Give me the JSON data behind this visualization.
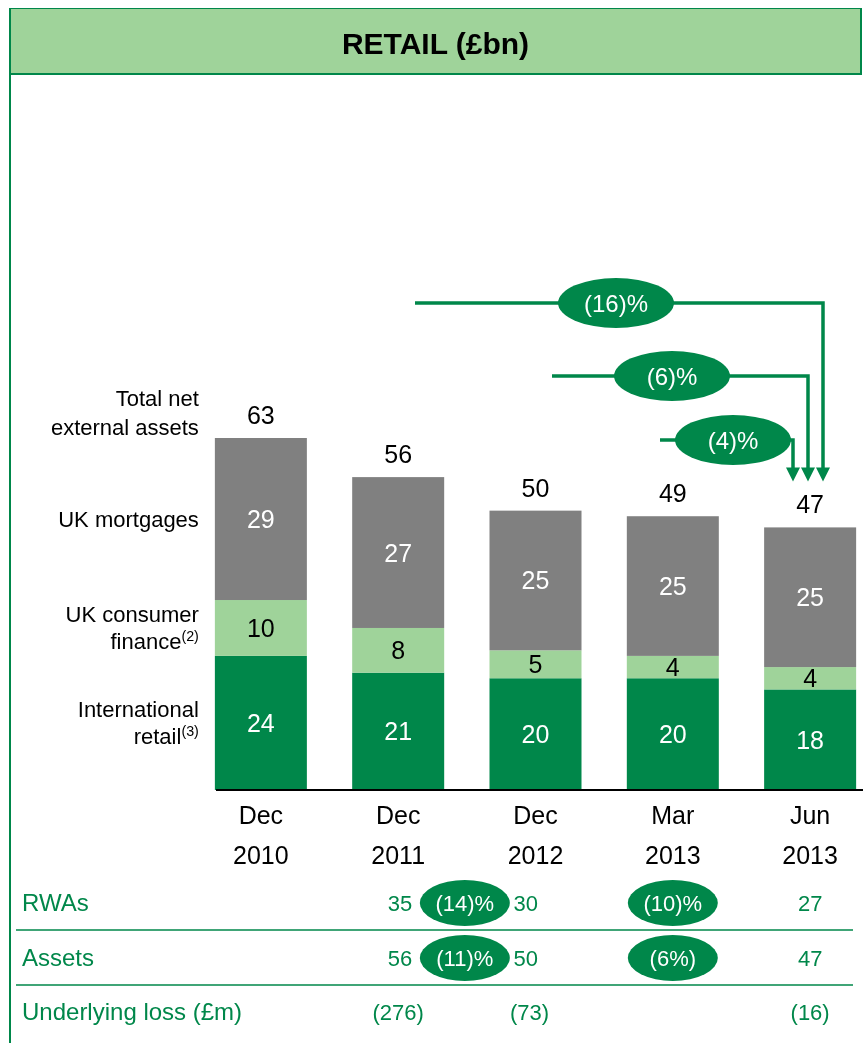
{
  "chart_data": {
    "type": "bar",
    "title": "RETAIL (£bn)",
    "stacked": true,
    "data_labels": true,
    "legend": "left",
    "categories": [
      "Dec 2010",
      "Dec 2011",
      "Dec 2012",
      "Mar 2013",
      "Jun 2013"
    ],
    "series": [
      {
        "name": "International retail$^{(3)}$",
        "color": "#00874a",
        "values": [
          24,
          21,
          20,
          20,
          18
        ]
      },
      {
        "name": "UK consumer finance$^{(2)}$",
        "color": "#9fd39a",
        "values": [
          10,
          8,
          5,
          4,
          4
        ]
      },
      {
        "name": "UK mortgages",
        "color": "#808080",
        "values": [
          29,
          27,
          25,
          25,
          25
        ]
      }
    ],
    "totals": [
      "63",
      "56",
      "50",
      "49",
      "47"
    ],
    "annotations": [
      "Total net external assets",
      "(16)%",
      "(6)%",
      "(4)%",
      "RWAs",
      "35",
      "(14)%",
      "30",
      "(10)%",
      "27",
      "Assets",
      "56",
      "(11)%",
      "50",
      "(6%)",
      "47",
      "Underlying loss (£m)",
      "(276)",
      "(73)",
      "(16)"
    ]
  }
}
